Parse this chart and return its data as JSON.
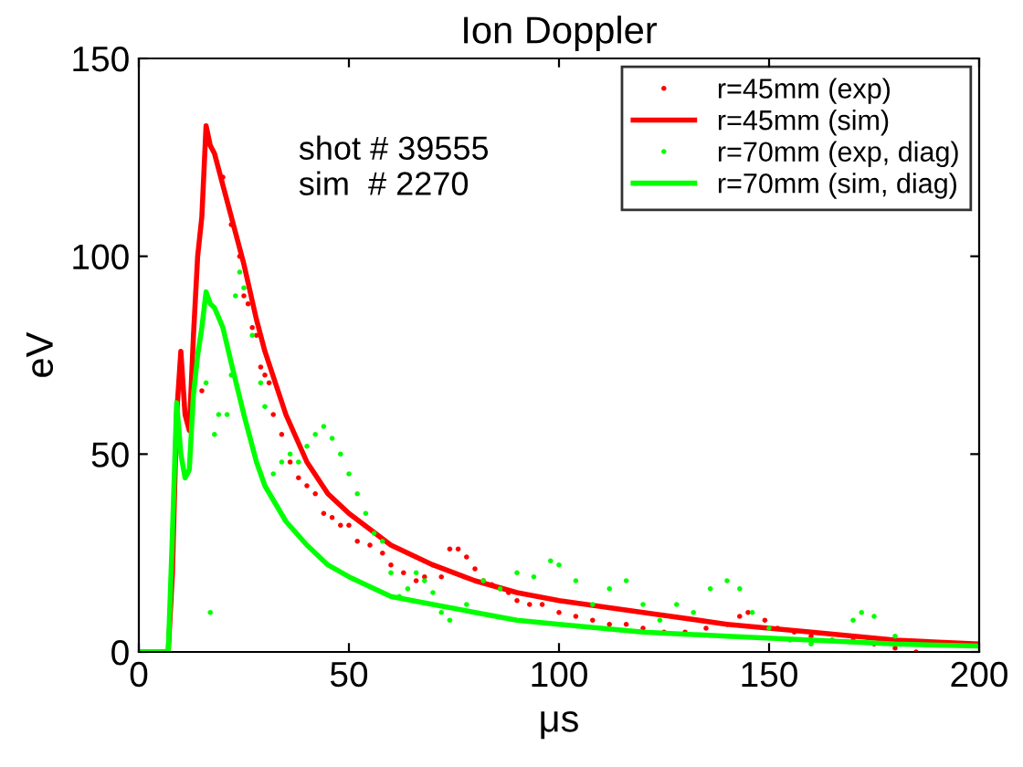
{
  "chart_data": {
    "type": "line",
    "title": "Ion Doppler",
    "xlabel": "μs",
    "ylabel": "eV",
    "xlim": [
      0,
      200
    ],
    "ylim": [
      0,
      150
    ],
    "xticks": [
      0,
      50,
      100,
      150,
      200
    ],
    "yticks": [
      0,
      50,
      100,
      150
    ],
    "grid": false,
    "legend": "top right",
    "annotations": [
      "shot # 39555\nsim  # 2270"
    ],
    "series": [
      {
        "name": "r=45mm (exp)",
        "type": "scatter",
        "marker": "circle",
        "color": "#ff0000",
        "x": [
          15,
          20,
          22,
          24,
          25,
          26,
          27,
          28,
          29,
          30,
          31,
          32,
          34,
          36,
          38,
          40,
          42,
          44,
          46,
          48,
          50,
          52,
          55,
          58,
          60,
          63,
          66,
          68,
          70,
          72,
          74,
          76,
          78,
          80,
          82,
          84,
          86,
          88,
          90,
          93,
          96,
          100,
          104,
          108,
          112,
          116,
          120,
          125,
          130,
          135,
          140,
          143,
          145,
          149,
          152,
          156,
          160,
          165,
          170,
          175,
          180,
          185
        ],
        "values": [
          66,
          120,
          108,
          100,
          90,
          88,
          82,
          80,
          72,
          70,
          68,
          60,
          55,
          48,
          44,
          42,
          40,
          35,
          34,
          32,
          32,
          28,
          27,
          25,
          22,
          20,
          18,
          19,
          22,
          19,
          26,
          26,
          24,
          21,
          18,
          17,
          16,
          15,
          13,
          12,
          12,
          10,
          9,
          8,
          7,
          7,
          6,
          5,
          5,
          6,
          7,
          9,
          10,
          8,
          6,
          5,
          4,
          3,
          3,
          2,
          1,
          0
        ]
      },
      {
        "name": "r=45mm (sim)",
        "marker": "none",
        "color": "#ff0000",
        "x": [
          0,
          7,
          8,
          9,
          10,
          11,
          12,
          13,
          14,
          15,
          16,
          17,
          18,
          20,
          22,
          25,
          28,
          30,
          35,
          40,
          45,
          50,
          60,
          70,
          80,
          90,
          100,
          120,
          140,
          160,
          180,
          200
        ],
        "values": [
          0,
          0,
          20,
          60,
          76,
          60,
          56,
          80,
          100,
          110,
          133,
          128,
          126,
          118,
          110,
          98,
          84,
          76,
          60,
          48,
          40,
          35,
          27,
          22,
          18,
          15,
          13,
          10,
          7,
          5,
          3,
          2
        ]
      },
      {
        "name": "r=70mm (exp, diag)",
        "type": "scatter",
        "marker": "circle",
        "color": "#00ff00",
        "x": [
          16,
          17,
          18,
          19,
          21,
          22,
          23,
          24,
          25,
          27,
          29,
          30,
          32,
          34,
          36,
          38,
          40,
          42,
          44,
          46,
          48,
          50,
          52,
          54,
          56,
          58,
          60,
          62,
          64,
          66,
          68,
          70,
          72,
          74,
          78,
          82,
          86,
          90,
          94,
          98,
          100,
          104,
          108,
          112,
          116,
          120,
          124,
          128,
          132,
          136,
          140,
          143,
          146,
          150,
          155,
          160,
          165,
          170,
          172,
          175,
          180
        ],
        "values": [
          68,
          10,
          55,
          60,
          60,
          70,
          90,
          96,
          92,
          80,
          68,
          62,
          45,
          48,
          50,
          48,
          52,
          55,
          57,
          54,
          50,
          45,
          40,
          35,
          30,
          28,
          20,
          14,
          16,
          20,
          18,
          15,
          10,
          8,
          12,
          18,
          16,
          20,
          19,
          23,
          22,
          18,
          12,
          16,
          18,
          12,
          8,
          12,
          10,
          16,
          18,
          16,
          10,
          6,
          3,
          2,
          3,
          8,
          10,
          9,
          4
        ]
      },
      {
        "name": "r=70mm (sim, diag)",
        "marker": "none",
        "color": "#00ff00",
        "x": [
          0,
          7,
          8,
          9,
          10,
          11,
          12,
          13,
          14,
          15,
          16,
          17,
          18,
          20,
          22,
          25,
          28,
          30,
          35,
          40,
          45,
          50,
          60,
          70,
          80,
          90,
          100,
          120,
          140,
          160,
          180,
          200
        ],
        "values": [
          0,
          0,
          30,
          63,
          50,
          44,
          46,
          65,
          75,
          82,
          91,
          88,
          87,
          82,
          73,
          60,
          48,
          42,
          33,
          27,
          22,
          19,
          14,
          12,
          10,
          8,
          7,
          5,
          4,
          3,
          2,
          1.5
        ]
      }
    ]
  }
}
